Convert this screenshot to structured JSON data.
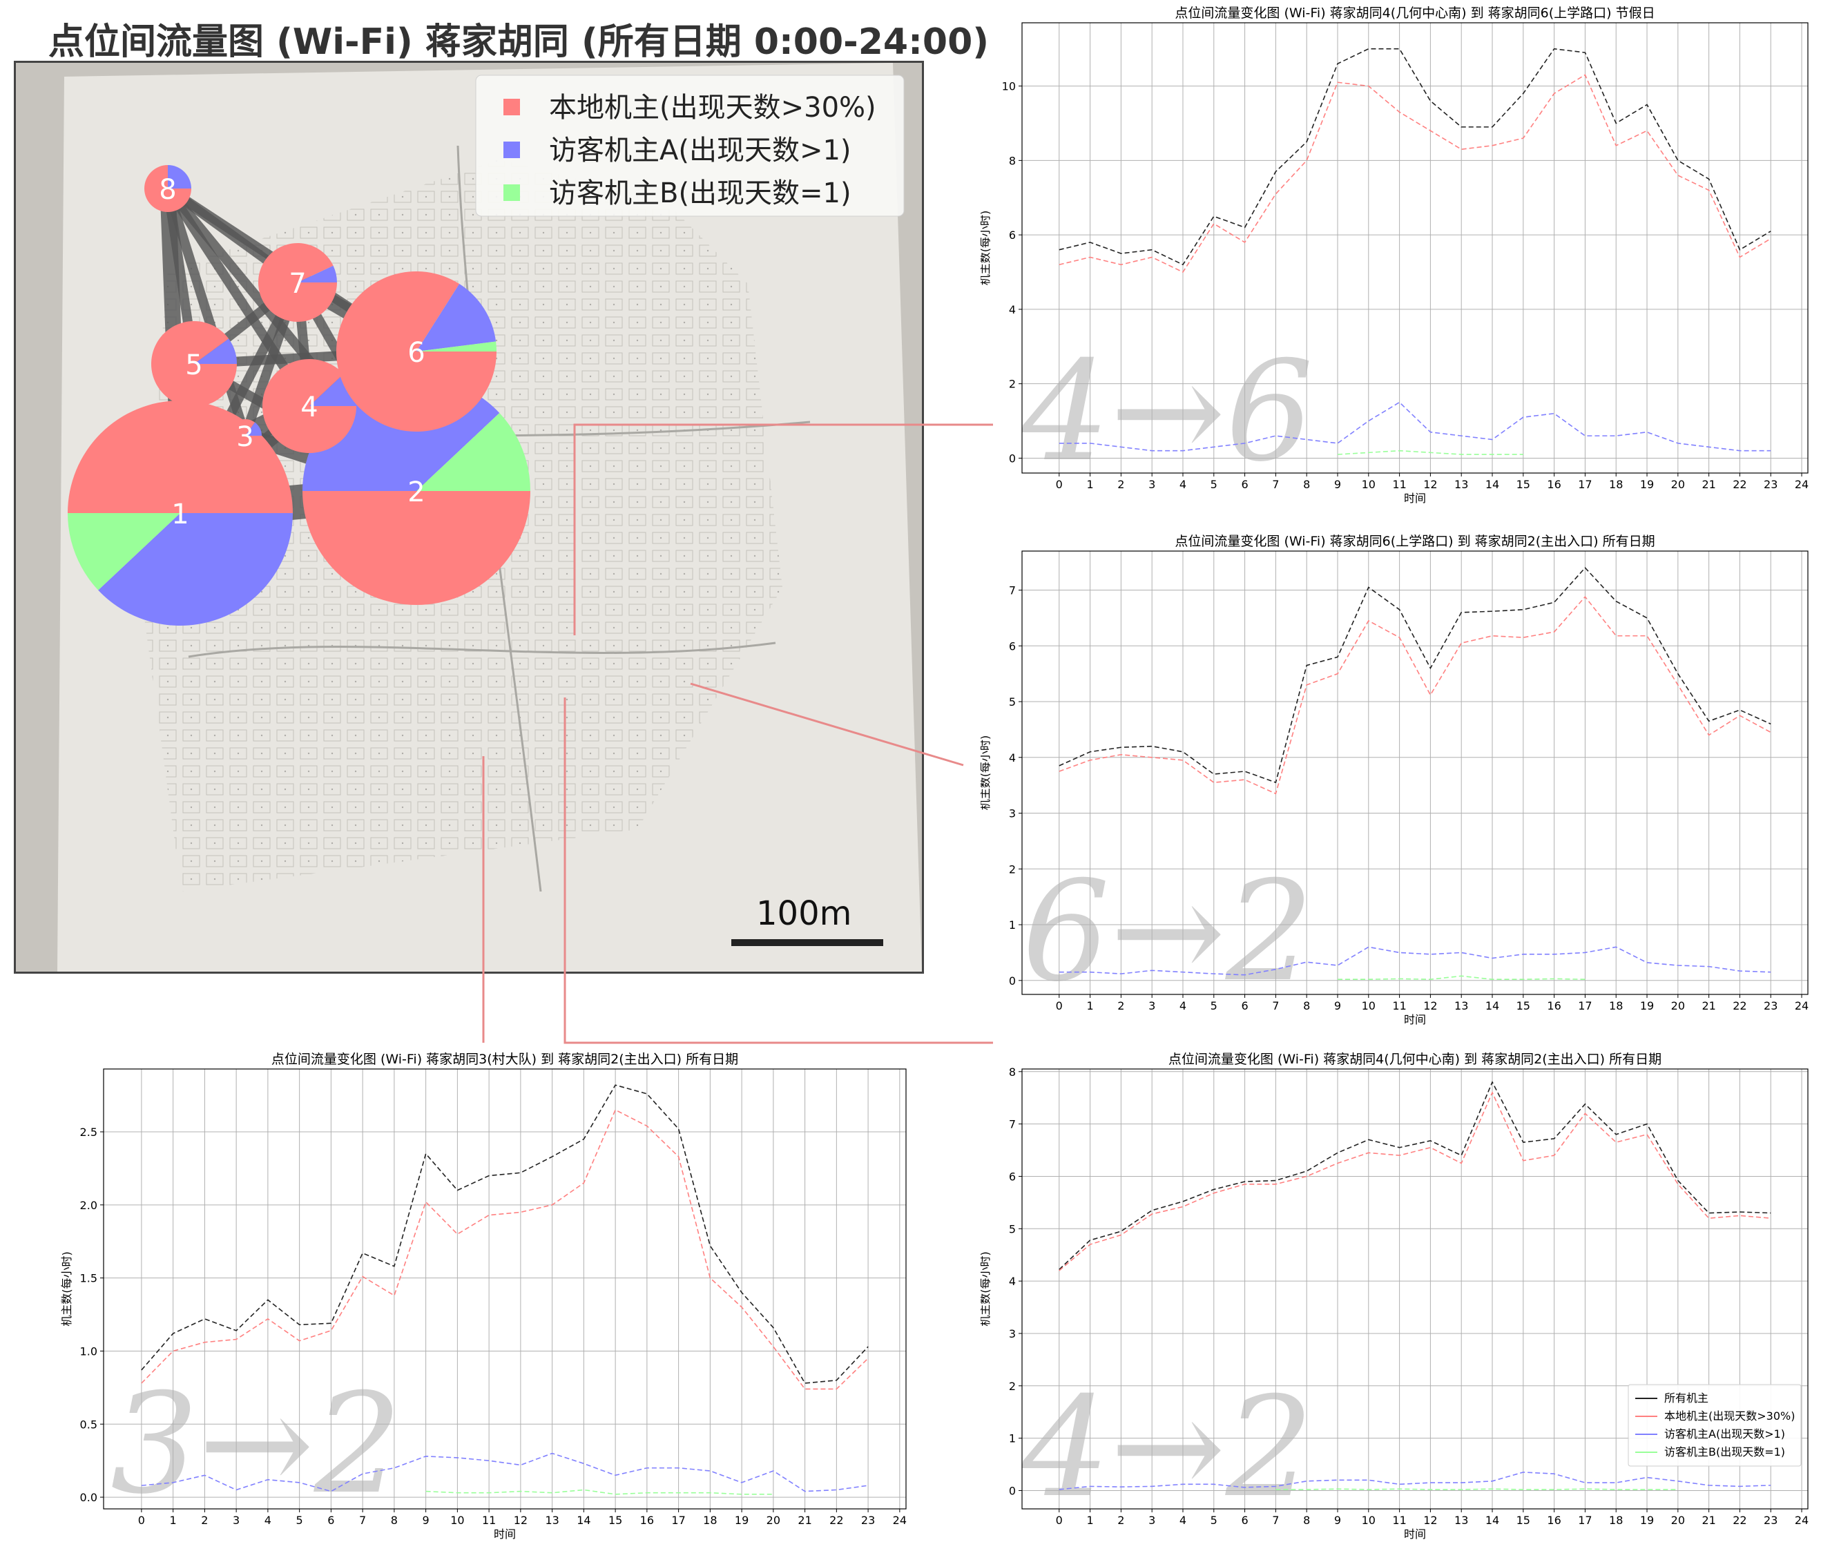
{
  "map": {
    "title": "点位间流量图 (Wi-Fi) 蒋家胡同 (所有日期 0:00-24:00)",
    "legend": [
      {
        "label": "本地机主(出现天数>30%)",
        "color": "#ff8080"
      },
      {
        "label": "访客机主A(出现天数>1)",
        "color": "#8080ff"
      },
      {
        "label": "访客机主B(出现天数=1)",
        "color": "#99ff99"
      }
    ],
    "scale_label": "100m",
    "nodes": [
      {
        "id": "1",
        "shares": [
          0.5,
          0.38,
          0.12
        ]
      },
      {
        "id": "2",
        "shares": [
          0.5,
          0.38,
          0.12
        ]
      },
      {
        "id": "3",
        "shares": [
          0.85,
          0.15,
          0.0
        ]
      },
      {
        "id": "4",
        "shares": [
          0.88,
          0.12,
          0.0
        ]
      },
      {
        "id": "5",
        "shares": [
          0.9,
          0.1,
          0.0
        ]
      },
      {
        "id": "6",
        "shares": [
          0.84,
          0.14,
          0.02
        ]
      },
      {
        "id": "7",
        "shares": [
          0.93,
          0.07,
          0.0
        ]
      },
      {
        "id": "8",
        "shares": [
          0.75,
          0.25,
          0.0
        ]
      }
    ],
    "links": [
      {
        "from": "1",
        "to": "2",
        "weight": 5
      },
      {
        "from": "1",
        "to": "5",
        "weight": 3
      },
      {
        "from": "1",
        "to": "8",
        "weight": 2
      },
      {
        "from": "1",
        "to": "4",
        "weight": 2
      },
      {
        "from": "1",
        "to": "7",
        "weight": 1
      },
      {
        "from": "1",
        "to": "3",
        "weight": 1
      },
      {
        "from": "2",
        "to": "6",
        "weight": 3
      },
      {
        "from": "2",
        "to": "4",
        "weight": 3
      },
      {
        "from": "2",
        "to": "3",
        "weight": 2
      },
      {
        "from": "2",
        "to": "8",
        "weight": 1
      },
      {
        "from": "2",
        "to": "7",
        "weight": 1
      },
      {
        "from": "2",
        "to": "5",
        "weight": 1
      },
      {
        "from": "4",
        "to": "6",
        "weight": 3
      },
      {
        "from": "4",
        "to": "7",
        "weight": 1
      },
      {
        "from": "4",
        "to": "8",
        "weight": 1
      },
      {
        "from": "3",
        "to": "6",
        "weight": 3
      },
      {
        "from": "3",
        "to": "8",
        "weight": 1
      },
      {
        "from": "3",
        "to": "7",
        "weight": 1
      },
      {
        "from": "6",
        "to": "7",
        "weight": 2
      },
      {
        "from": "6",
        "to": "8",
        "weight": 1
      },
      {
        "from": "5",
        "to": "6",
        "weight": 1
      },
      {
        "from": "5",
        "to": "8",
        "weight": 1
      },
      {
        "from": "5",
        "to": "7",
        "weight": 1
      },
      {
        "from": "7",
        "to": "8",
        "weight": 1
      }
    ]
  },
  "colors": {
    "all": "#222222",
    "local": "#ff8080",
    "visitorA": "#8080ff",
    "visitorB": "#99ff99"
  },
  "chart_data": [
    {
      "type": "line",
      "title": "点位间流量变化图 (Wi-Fi) 蒋家胡同4(几何中心南) 到 蒋家胡同6(上学路口) 节假日",
      "xlabel": "时间",
      "ylabel": "机主数(每小时)",
      "watermark": "4→6",
      "xlim": [
        -1.2,
        24.2
      ],
      "ylim": [
        -0.4,
        11.7
      ],
      "xticks": [
        0,
        1,
        2,
        3,
        4,
        5,
        6,
        7,
        8,
        9,
        10,
        11,
        12,
        13,
        14,
        15,
        16,
        17,
        18,
        19,
        20,
        21,
        22,
        23,
        24
      ],
      "yticks": [
        0,
        2,
        4,
        6,
        8,
        10
      ],
      "grid": true,
      "x": [
        0,
        1,
        2,
        3,
        4,
        5,
        6,
        7,
        8,
        9,
        10,
        11,
        12,
        13,
        14,
        15,
        16,
        17,
        18,
        19,
        20,
        21,
        22,
        23
      ],
      "series": [
        {
          "name": "所有机主",
          "color": "#222222",
          "values": [
            5.6,
            5.8,
            5.5,
            5.6,
            5.2,
            6.5,
            6.2,
            7.7,
            8.5,
            10.6,
            11.0,
            11.0,
            9.6,
            8.9,
            8.9,
            9.8,
            11.0,
            10.9,
            9.0,
            9.5,
            8.0,
            7.5,
            5.6,
            6.1
          ]
        },
        {
          "name": "本地机主(出现天数>30%)",
          "color": "#ff8080",
          "values": [
            5.2,
            5.4,
            5.2,
            5.4,
            5.0,
            6.3,
            5.8,
            7.1,
            8.0,
            10.1,
            10.0,
            9.3,
            8.8,
            8.3,
            8.4,
            8.6,
            9.8,
            10.3,
            8.4,
            8.8,
            7.6,
            7.2,
            5.4,
            5.9
          ]
        },
        {
          "name": "访客机主A(出现天数>1)",
          "color": "#8080ff",
          "values": [
            0.4,
            0.4,
            0.3,
            0.2,
            0.2,
            0.3,
            0.4,
            0.6,
            0.5,
            0.4,
            1.0,
            1.5,
            0.7,
            0.6,
            0.5,
            1.1,
            1.2,
            0.6,
            0.6,
            0.7,
            0.4,
            0.3,
            0.2,
            0.2
          ]
        },
        {
          "name": "访客机主B(出现天数=1)",
          "color": "#99ff99",
          "x": [
            9,
            10,
            11,
            12,
            13,
            14,
            15
          ],
          "values": [
            0.1,
            0.15,
            0.2,
            0.15,
            0.1,
            0.1,
            0.1
          ]
        }
      ]
    },
    {
      "type": "line",
      "title": "点位间流量变化图 (Wi-Fi) 蒋家胡同6(上学路口) 到 蒋家胡同2(主出入口) 所有日期",
      "xlabel": "时间",
      "ylabel": "机主数(每小时)",
      "watermark": "6→2",
      "xlim": [
        -1.2,
        24.2
      ],
      "ylim": [
        -0.25,
        7.7
      ],
      "xticks": [
        0,
        1,
        2,
        3,
        4,
        5,
        6,
        7,
        8,
        9,
        10,
        11,
        12,
        13,
        14,
        15,
        16,
        17,
        18,
        19,
        20,
        21,
        22,
        23,
        24
      ],
      "yticks": [
        0,
        1,
        2,
        3,
        4,
        5,
        6,
        7
      ],
      "grid": true,
      "x": [
        0,
        1,
        2,
        3,
        4,
        5,
        6,
        7,
        8,
        9,
        10,
        11,
        12,
        13,
        14,
        15,
        16,
        17,
        18,
        19,
        20,
        21,
        22,
        23
      ],
      "series": [
        {
          "name": "所有机主",
          "color": "#222222",
          "values": [
            3.85,
            4.1,
            4.18,
            4.2,
            4.1,
            3.7,
            3.75,
            3.55,
            5.65,
            5.8,
            7.05,
            6.65,
            5.6,
            6.6,
            6.62,
            6.65,
            6.78,
            7.4,
            6.8,
            6.5,
            5.5,
            4.65,
            4.85,
            4.6
          ]
        },
        {
          "name": "本地机主(出现天数>30%)",
          "color": "#ff8080",
          "values": [
            3.75,
            3.95,
            4.05,
            4.0,
            3.95,
            3.55,
            3.6,
            3.35,
            5.3,
            5.5,
            6.45,
            6.15,
            5.12,
            6.05,
            6.18,
            6.15,
            6.25,
            6.88,
            6.18,
            6.18,
            5.3,
            4.4,
            4.75,
            4.45
          ]
        },
        {
          "name": "访客机主A(出现天数>1)",
          "color": "#8080ff",
          "values": [
            0.15,
            0.15,
            0.12,
            0.18,
            0.15,
            0.12,
            0.1,
            0.2,
            0.33,
            0.27,
            0.6,
            0.5,
            0.47,
            0.5,
            0.4,
            0.47,
            0.47,
            0.5,
            0.6,
            0.32,
            0.27,
            0.25,
            0.17,
            0.15
          ]
        },
        {
          "name": "访客机主B(出现天数=1)",
          "color": "#99ff99",
          "x": [
            9,
            10,
            11,
            12,
            13,
            14,
            15,
            16,
            17
          ],
          "values": [
            0.02,
            0.02,
            0.03,
            0.02,
            0.08,
            0.02,
            0.02,
            0.03,
            0.02
          ]
        }
      ]
    },
    {
      "type": "line",
      "title": "点位间流量变化图 (Wi-Fi) 蒋家胡同3(村大队) 到 蒋家胡同2(主出入口) 所有日期",
      "xlabel": "时间",
      "ylabel": "机主数(每小时)",
      "watermark": "3→2",
      "xlim": [
        -1.2,
        24.2
      ],
      "ylim": [
        -0.08,
        2.93
      ],
      "xticks": [
        0,
        1,
        2,
        3,
        4,
        5,
        6,
        7,
        8,
        9,
        10,
        11,
        12,
        13,
        14,
        15,
        16,
        17,
        18,
        19,
        20,
        21,
        22,
        23,
        24
      ],
      "yticks": [
        0.0,
        0.5,
        1.0,
        1.5,
        2.0,
        2.5
      ],
      "ytick_labels": [
        "0.0",
        "0.5",
        "1.0",
        "1.5",
        "2.0",
        "2.5"
      ],
      "grid": true,
      "x": [
        0,
        1,
        2,
        3,
        4,
        5,
        6,
        7,
        8,
        9,
        10,
        11,
        12,
        13,
        14,
        15,
        16,
        17,
        18,
        19,
        20,
        21,
        22,
        23
      ],
      "series": [
        {
          "name": "所有机主",
          "color": "#222222",
          "values": [
            0.87,
            1.12,
            1.22,
            1.14,
            1.35,
            1.18,
            1.19,
            1.67,
            1.58,
            2.35,
            2.1,
            2.2,
            2.22,
            2.33,
            2.45,
            2.82,
            2.76,
            2.52,
            1.72,
            1.4,
            1.16,
            0.78,
            0.8,
            1.03
          ]
        },
        {
          "name": "本地机主(出现天数>30%)",
          "color": "#ff8080",
          "values": [
            0.78,
            1.0,
            1.06,
            1.08,
            1.22,
            1.07,
            1.14,
            1.51,
            1.38,
            2.02,
            1.8,
            1.93,
            1.95,
            2.0,
            2.15,
            2.65,
            2.54,
            2.33,
            1.5,
            1.3,
            1.03,
            0.74,
            0.74,
            0.95
          ]
        },
        {
          "name": "访客机主A(出现天数>1)",
          "color": "#8080ff",
          "values": [
            0.08,
            0.1,
            0.15,
            0.05,
            0.12,
            0.1,
            0.04,
            0.16,
            0.2,
            0.28,
            0.27,
            0.25,
            0.22,
            0.3,
            0.23,
            0.15,
            0.2,
            0.2,
            0.18,
            0.1,
            0.18,
            0.04,
            0.05,
            0.08
          ]
        },
        {
          "name": "访客机主B(出现天数=1)",
          "color": "#99ff99",
          "x": [
            9,
            10,
            11,
            12,
            13,
            14,
            15,
            16,
            17,
            18,
            19,
            20
          ],
          "values": [
            0.04,
            0.03,
            0.03,
            0.04,
            0.03,
            0.05,
            0.02,
            0.03,
            0.03,
            0.03,
            0.02,
            0.02
          ]
        }
      ]
    },
    {
      "type": "line",
      "title": "点位间流量变化图 (Wi-Fi) 蒋家胡同4(几何中心南) 到 蒋家胡同2(主出入口) 所有日期",
      "xlabel": "时间",
      "ylabel": "机主数(每小时)",
      "watermark": "4→2",
      "xlim": [
        -1.2,
        24.2
      ],
      "ylim": [
        -0.35,
        8.05
      ],
      "xticks": [
        0,
        1,
        2,
        3,
        4,
        5,
        6,
        7,
        8,
        9,
        10,
        11,
        12,
        13,
        14,
        15,
        16,
        17,
        18,
        19,
        20,
        21,
        22,
        23,
        24
      ],
      "yticks": [
        0,
        1,
        2,
        3,
        4,
        5,
        6,
        7,
        8
      ],
      "grid": true,
      "legend": "lower-right",
      "x": [
        0,
        1,
        2,
        3,
        4,
        5,
        6,
        7,
        8,
        9,
        10,
        11,
        12,
        13,
        14,
        15,
        16,
        17,
        18,
        19,
        20,
        21,
        22,
        23
      ],
      "series": [
        {
          "name": "所有机主",
          "color": "#222222",
          "values": [
            4.22,
            4.78,
            4.95,
            5.35,
            5.52,
            5.75,
            5.9,
            5.92,
            6.1,
            6.45,
            6.7,
            6.55,
            6.68,
            6.4,
            7.8,
            6.65,
            6.72,
            7.38,
            6.8,
            7.0,
            5.92,
            5.3,
            5.32,
            5.3
          ]
        },
        {
          "name": "本地机主(出现天数>30%)",
          "color": "#ff8080",
          "values": [
            4.2,
            4.7,
            4.88,
            5.28,
            5.42,
            5.68,
            5.85,
            5.85,
            6.0,
            6.25,
            6.45,
            6.4,
            6.55,
            6.25,
            7.6,
            6.3,
            6.4,
            7.2,
            6.65,
            6.8,
            5.85,
            5.2,
            5.25,
            5.2
          ]
        },
        {
          "name": "访客机主A(出现天数>1)",
          "color": "#8080ff",
          "values": [
            0.02,
            0.08,
            0.07,
            0.08,
            0.12,
            0.12,
            0.06,
            0.08,
            0.18,
            0.2,
            0.2,
            0.12,
            0.15,
            0.15,
            0.18,
            0.35,
            0.32,
            0.15,
            0.15,
            0.25,
            0.18,
            0.1,
            0.08,
            0.1
          ]
        },
        {
          "name": "访客机主B(出现天数=1)",
          "color": "#99ff99",
          "x": [
            7,
            8,
            9,
            10,
            11,
            12,
            13,
            14,
            15,
            16,
            17,
            18,
            19,
            20
          ],
          "values": [
            0.02,
            0.02,
            0.03,
            0.02,
            0.03,
            0.02,
            0.02,
            0.03,
            0.02,
            0.02,
            0.03,
            0.02,
            0.02,
            0.02
          ]
        }
      ]
    }
  ]
}
